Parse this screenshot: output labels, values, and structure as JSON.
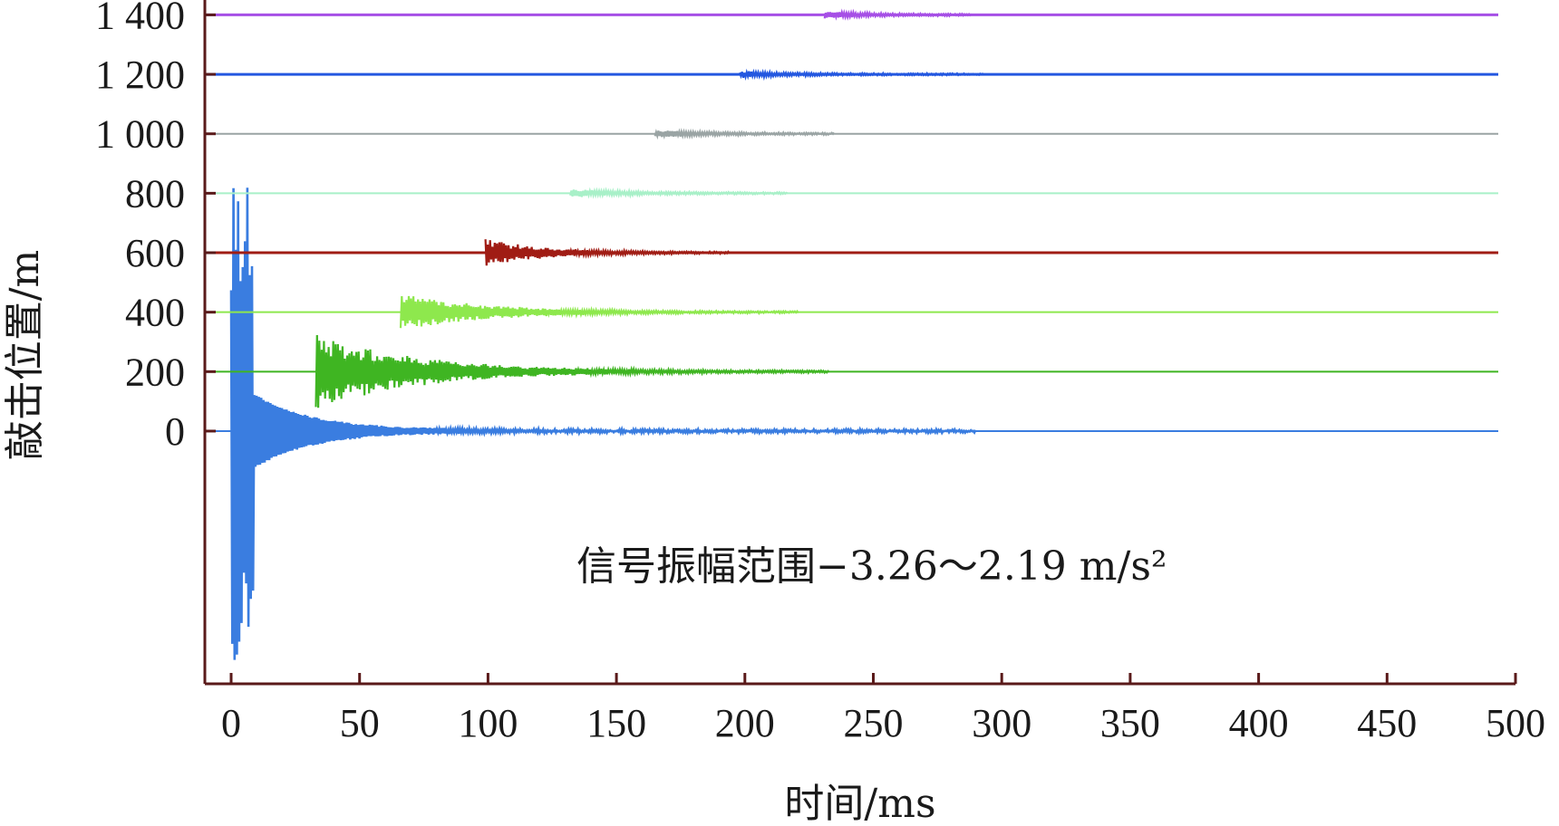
{
  "chart_data": {
    "type": "line",
    "xlabel": "时间/ms",
    "ylabel": "敲击位置/m",
    "xlim": [
      0,
      500
    ],
    "ylim_display": [
      -850,
      1450
    ],
    "x_ticks": [
      0,
      50,
      100,
      150,
      200,
      250,
      300,
      350,
      400,
      450,
      500
    ],
    "y_ticks": [
      0,
      200,
      400,
      600,
      800,
      1000,
      1200,
      1400
    ],
    "y_tick_labels": [
      "0",
      "200",
      "400",
      "600",
      "800",
      "1 000",
      "1 200",
      "1 400"
    ],
    "grid": false,
    "annotation": "信号振幅范围−3.26～2.19 m/s²",
    "series": [
      {
        "offset": 0,
        "arrival_ms": 0,
        "color": "#3a7de0"
      },
      {
        "offset": 200,
        "arrival_ms": 33,
        "color": "#3fb522"
      },
      {
        "offset": 400,
        "arrival_ms": 66,
        "color": "#8ee84d"
      },
      {
        "offset": 600,
        "arrival_ms": 99,
        "color": "#a01c14"
      },
      {
        "offset": 800,
        "arrival_ms": 132,
        "color": "#a8f0c8"
      },
      {
        "offset": 1000,
        "arrival_ms": 165,
        "color": "#9aa4a4"
      },
      {
        "offset": 1200,
        "arrival_ms": 198,
        "color": "#2357e0"
      },
      {
        "offset": 1400,
        "arrival_ms": 231,
        "color": "#a64fe6"
      }
    ],
    "amplitude_range_m_s2": [
      -3.26,
      2.19
    ]
  }
}
